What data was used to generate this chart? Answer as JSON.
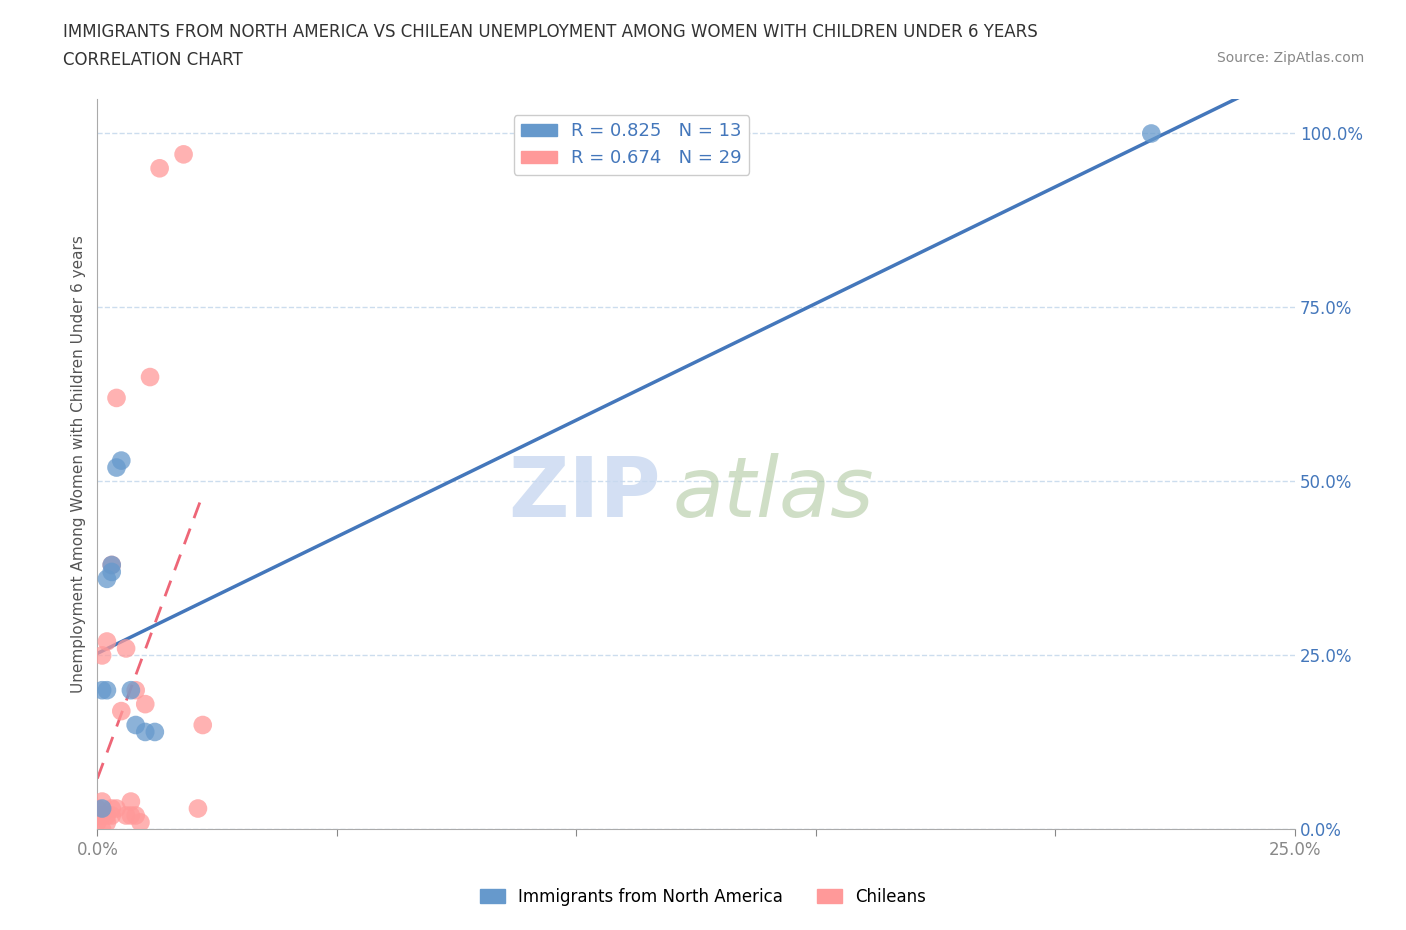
{
  "title_line1": "IMMIGRANTS FROM NORTH AMERICA VS CHILEAN UNEMPLOYMENT AMONG WOMEN WITH CHILDREN UNDER 6 YEARS",
  "title_line2": "CORRELATION CHART",
  "source": "Source: ZipAtlas.com",
  "ylabel": "Unemployment Among Women with Children Under 6 years",
  "watermark_zip": "ZIP",
  "watermark_atlas": "atlas",
  "blue_color": "#6699CC",
  "pink_color": "#FF9999",
  "blue_line_color": "#4477BB",
  "pink_line_color": "#EE6677",
  "grid_color": "#CCDDEE",
  "background_color": "#FFFFFF",
  "r_blue": 0.825,
  "n_blue": 13,
  "r_pink": 0.674,
  "n_pink": 29,
  "blue_points_x": [
    0.001,
    0.001,
    0.002,
    0.002,
    0.003,
    0.003,
    0.004,
    0.005,
    0.007,
    0.008,
    0.01,
    0.012,
    0.22
  ],
  "blue_points_y": [
    0.03,
    0.2,
    0.2,
    0.36,
    0.37,
    0.38,
    0.52,
    0.53,
    0.2,
    0.15,
    0.14,
    0.14,
    1.0
  ],
  "pink_points_x": [
    0.0,
    0.0,
    0.0,
    0.001,
    0.001,
    0.001,
    0.001,
    0.002,
    0.002,
    0.002,
    0.003,
    0.003,
    0.003,
    0.004,
    0.004,
    0.005,
    0.006,
    0.006,
    0.007,
    0.007,
    0.008,
    0.008,
    0.009,
    0.01,
    0.011,
    0.013,
    0.018,
    0.021,
    0.022
  ],
  "pink_points_y": [
    0.01,
    0.02,
    0.03,
    0.0,
    0.02,
    0.04,
    0.25,
    0.01,
    0.02,
    0.27,
    0.02,
    0.03,
    0.38,
    0.03,
    0.62,
    0.17,
    0.02,
    0.26,
    0.02,
    0.04,
    0.02,
    0.2,
    0.01,
    0.18,
    0.65,
    0.95,
    0.97,
    0.03,
    0.15
  ],
  "xlim": [
    0.0,
    0.25
  ],
  "ylim": [
    0.0,
    1.05
  ],
  "xtick_only_ends": true,
  "ytick_positions": [
    0.0,
    0.25,
    0.5,
    0.75,
    1.0
  ],
  "xtick_positions": [
    0.0,
    0.05,
    0.1,
    0.15,
    0.2,
    0.25
  ]
}
